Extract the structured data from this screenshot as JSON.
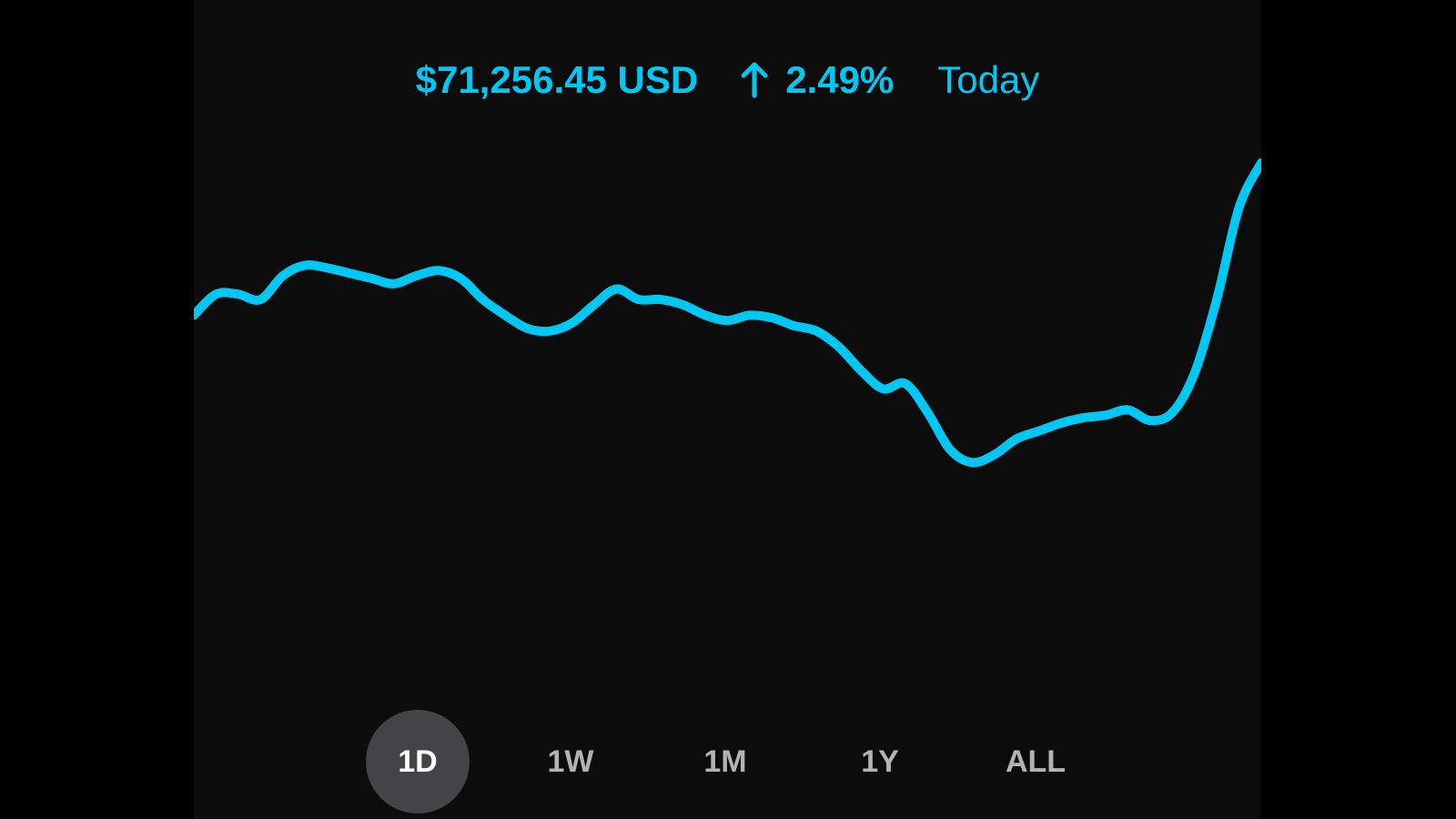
{
  "header": {
    "price": "$71,256.45 USD",
    "change_icon": "arrow-up-icon",
    "change": "2.49%",
    "period": "Today"
  },
  "colors": {
    "accent": "#00c8f2",
    "panel": "#0c0c0d",
    "active_pill": "#444447",
    "inactive_text": "#b3b3b3"
  },
  "ranges": [
    {
      "label": "1D",
      "active": true
    },
    {
      "label": "1W",
      "active": false
    },
    {
      "label": "1M",
      "active": false
    },
    {
      "label": "1Y",
      "active": false
    },
    {
      "label": "ALL",
      "active": false
    }
  ],
  "chart_data": {
    "type": "line",
    "series": [
      {
        "values": [
          63.2,
          64.0,
          64.0,
          63.8,
          64.7,
          65.1,
          65.0,
          64.8,
          64.6,
          64.4,
          64.7,
          64.9,
          64.6,
          63.8,
          63.2,
          62.7,
          62.6,
          62.9,
          63.6,
          64.2,
          63.8,
          63.8,
          63.6,
          63.2,
          63.0,
          63.2,
          63.1,
          62.8,
          62.6,
          62.0,
          61.1,
          60.4,
          60.6,
          59.5,
          58.1,
          57.6,
          57.9,
          58.5,
          58.8,
          59.1,
          59.3,
          59.4,
          59.6,
          59.2,
          59.5,
          61.0,
          63.8,
          67.3,
          69.0
        ]
      }
    ]
  }
}
